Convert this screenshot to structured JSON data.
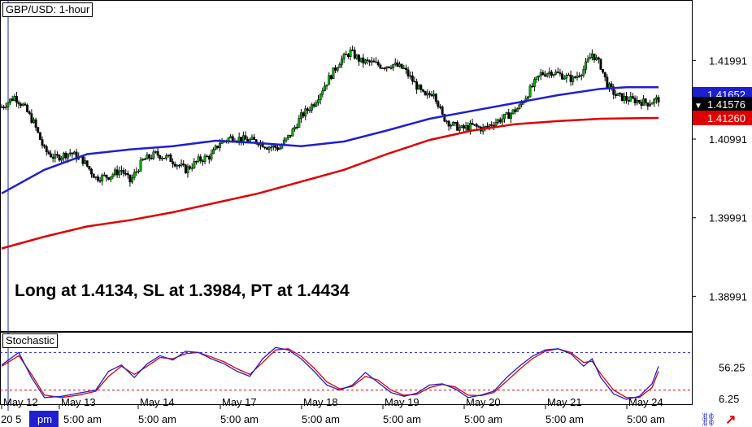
{
  "chart_data": {
    "type": "candlestick",
    "title": "GBP/USD: 1-hour",
    "annotation": "Long at 1.4134, SL at 1.3984, PT at 1.4434",
    "price_axis": {
      "ticks": [
        "1.41991",
        "1.40991",
        "1.39991",
        "1.38991"
      ],
      "tick_values": [
        1.41991,
        1.40991,
        1.39991,
        1.38991
      ],
      "range": [
        1.3855,
        1.4276
      ]
    },
    "price_labels": [
      {
        "text": "1.41652",
        "value": 1.41652,
        "color": "#1f1fd0"
      },
      {
        "text": "1.41576",
        "value": 1.41576,
        "color": "#000000"
      },
      {
        "text": "1.41260",
        "value": 1.4126,
        "color": "#e00000"
      }
    ],
    "x_dates": [
      "May 12",
      "May 13",
      "May 14",
      "May 17",
      "May 18",
      "May 19",
      "May 20",
      "May 21",
      "May 24"
    ],
    "x_times": [
      "20 5",
      "pm",
      "5:00 am",
      "5:00 am",
      "5:00 am",
      "5:00 am",
      "5:00 am",
      "5:00 am",
      "5:00 am",
      "5:00 am"
    ],
    "close_path": [
      [
        0,
        1.414
      ],
      [
        6,
        1.4153
      ],
      [
        10,
        1.4142
      ],
      [
        15,
        1.412
      ],
      [
        20,
        1.4085
      ],
      [
        25,
        1.4075
      ],
      [
        32,
        1.4082
      ],
      [
        38,
        1.4072
      ],
      [
        44,
        1.405
      ],
      [
        50,
        1.4052
      ],
      [
        56,
        1.406
      ],
      [
        60,
        1.4045
      ],
      [
        66,
        1.4072
      ],
      [
        72,
        1.408
      ],
      [
        78,
        1.4075
      ],
      [
        86,
        1.406
      ],
      [
        92,
        1.4072
      ],
      [
        98,
        1.4078
      ],
      [
        102,
        1.4095
      ],
      [
        108,
        1.4102
      ],
      [
        114,
        1.4098
      ],
      [
        120,
        1.4096
      ],
      [
        124,
        1.409
      ],
      [
        130,
        1.4088
      ],
      [
        135,
        1.4105
      ],
      [
        140,
        1.4128
      ],
      [
        146,
        1.4145
      ],
      [
        152,
        1.4172
      ],
      [
        158,
        1.4198
      ],
      [
        163,
        1.421
      ],
      [
        168,
        1.4198
      ],
      [
        173,
        1.4196
      ],
      [
        178,
        1.4192
      ],
      [
        183,
        1.4194
      ],
      [
        188,
        1.4188
      ],
      [
        193,
        1.417
      ],
      [
        198,
        1.4152
      ],
      [
        202,
        1.416
      ],
      [
        206,
        1.4128
      ],
      [
        210,
        1.4118
      ],
      [
        215,
        1.4112
      ],
      [
        220,
        1.4116
      ],
      [
        225,
        1.4112
      ],
      [
        230,
        1.412
      ],
      [
        236,
        1.4128
      ],
      [
        242,
        1.414
      ],
      [
        247,
        1.4162
      ],
      [
        252,
        1.4182
      ],
      [
        257,
        1.4185
      ],
      [
        262,
        1.418
      ],
      [
        267,
        1.4175
      ],
      [
        272,
        1.4188
      ],
      [
        276,
        1.4208
      ],
      [
        280,
        1.4192
      ],
      [
        283,
        1.4168
      ],
      [
        287,
        1.4155
      ],
      [
        292,
        1.415
      ],
      [
        297,
        1.4148
      ],
      [
        302,
        1.4145
      ],
      [
        307,
        1.415
      ]
    ],
    "series": [
      {
        "name": "",
        "color": "#1f1fd0",
        "values": [
          [
            0,
            1.403
          ],
          [
            20,
            1.406
          ],
          [
            40,
            1.408
          ],
          [
            60,
            1.4086
          ],
          [
            80,
            1.409
          ],
          [
            100,
            1.4097
          ],
          [
            120,
            1.4094
          ],
          [
            140,
            1.409
          ],
          [
            160,
            1.4096
          ],
          [
            180,
            1.411
          ],
          [
            200,
            1.4125
          ],
          [
            220,
            1.4135
          ],
          [
            240,
            1.4145
          ],
          [
            260,
            1.4155
          ],
          [
            280,
            1.4163
          ],
          [
            292,
            1.4165
          ],
          [
            307,
            1.4165
          ]
        ]
      },
      {
        "name": "",
        "color": "#e00000",
        "values": [
          [
            0,
            1.396
          ],
          [
            20,
            1.3975
          ],
          [
            40,
            1.3988
          ],
          [
            60,
            1.3996
          ],
          [
            80,
            1.4006
          ],
          [
            100,
            1.4018
          ],
          [
            120,
            1.403
          ],
          [
            140,
            1.4045
          ],
          [
            160,
            1.406
          ],
          [
            180,
            1.408
          ],
          [
            200,
            1.4098
          ],
          [
            220,
            1.411
          ],
          [
            240,
            1.4118
          ],
          [
            260,
            1.4122
          ],
          [
            280,
            1.4125
          ],
          [
            307,
            1.4126
          ]
        ]
      }
    ],
    "stochastic": {
      "label": "Stochastic",
      "ticks": [
        "56.25",
        "6.25"
      ],
      "tick_values": [
        56.25,
        6.25
      ],
      "range": [
        0,
        100
      ],
      "levels": [
        80,
        20
      ],
      "k": [
        [
          0,
          60
        ],
        [
          8,
          80
        ],
        [
          14,
          40
        ],
        [
          20,
          8
        ],
        [
          28,
          10
        ],
        [
          36,
          15
        ],
        [
          44,
          20
        ],
        [
          50,
          50
        ],
        [
          56,
          60
        ],
        [
          62,
          40
        ],
        [
          68,
          62
        ],
        [
          74,
          75
        ],
        [
          80,
          68
        ],
        [
          86,
          82
        ],
        [
          92,
          80
        ],
        [
          98,
          70
        ],
        [
          104,
          62
        ],
        [
          110,
          50
        ],
        [
          116,
          42
        ],
        [
          122,
          70
        ],
        [
          128,
          88
        ],
        [
          134,
          84
        ],
        [
          140,
          70
        ],
        [
          146,
          50
        ],
        [
          152,
          28
        ],
        [
          158,
          20
        ],
        [
          164,
          28
        ],
        [
          170,
          48
        ],
        [
          176,
          32
        ],
        [
          182,
          16
        ],
        [
          188,
          10
        ],
        [
          194,
          15
        ],
        [
          200,
          28
        ],
        [
          206,
          30
        ],
        [
          212,
          22
        ],
        [
          218,
          8
        ],
        [
          224,
          12
        ],
        [
          230,
          18
        ],
        [
          236,
          40
        ],
        [
          242,
          58
        ],
        [
          248,
          74
        ],
        [
          254,
          84
        ],
        [
          260,
          86
        ],
        [
          266,
          78
        ],
        [
          272,
          58
        ],
        [
          276,
          70
        ],
        [
          280,
          40
        ],
        [
          286,
          14
        ],
        [
          292,
          5
        ],
        [
          298,
          10
        ],
        [
          304,
          30
        ],
        [
          307,
          58
        ]
      ],
      "d": [
        [
          0,
          58
        ],
        [
          8,
          75
        ],
        [
          14,
          45
        ],
        [
          20,
          12
        ],
        [
          28,
          8
        ],
        [
          36,
          12
        ],
        [
          44,
          18
        ],
        [
          50,
          42
        ],
        [
          56,
          58
        ],
        [
          62,
          45
        ],
        [
          68,
          58
        ],
        [
          74,
          72
        ],
        [
          80,
          70
        ],
        [
          86,
          78
        ],
        [
          92,
          80
        ],
        [
          98,
          73
        ],
        [
          104,
          65
        ],
        [
          110,
          54
        ],
        [
          116,
          45
        ],
        [
          122,
          64
        ],
        [
          128,
          84
        ],
        [
          134,
          86
        ],
        [
          140,
          74
        ],
        [
          146,
          55
        ],
        [
          152,
          33
        ],
        [
          158,
          22
        ],
        [
          164,
          26
        ],
        [
          170,
          42
        ],
        [
          176,
          36
        ],
        [
          182,
          20
        ],
        [
          188,
          12
        ],
        [
          194,
          13
        ],
        [
          200,
          24
        ],
        [
          206,
          29
        ],
        [
          212,
          25
        ],
        [
          218,
          12
        ],
        [
          224,
          11
        ],
        [
          230,
          16
        ],
        [
          236,
          34
        ],
        [
          242,
          53
        ],
        [
          248,
          70
        ],
        [
          254,
          82
        ],
        [
          260,
          86
        ],
        [
          266,
          80
        ],
        [
          272,
          64
        ],
        [
          276,
          66
        ],
        [
          280,
          46
        ],
        [
          286,
          20
        ],
        [
          292,
          8
        ],
        [
          298,
          8
        ],
        [
          304,
          24
        ],
        [
          307,
          50
        ]
      ]
    }
  }
}
